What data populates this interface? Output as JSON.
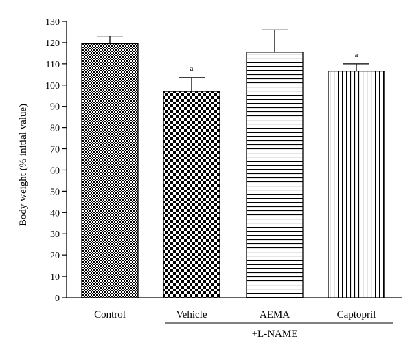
{
  "chart_data": {
    "type": "bar",
    "title": "",
    "xlabel": "",
    "ylabel": "Body weight (% initial value)",
    "ylim": [
      0,
      130
    ],
    "yticks": [
      0,
      10,
      20,
      30,
      40,
      50,
      60,
      70,
      80,
      90,
      100,
      110,
      120,
      130
    ],
    "categories": [
      "Control",
      "Vehicle",
      "AEMA",
      "Captopril"
    ],
    "values": [
      119.5,
      97,
      115.5,
      106.5
    ],
    "error_upper": [
      123,
      103.5,
      126,
      110
    ],
    "significance": [
      "",
      "a",
      "",
      "a"
    ],
    "patterns": [
      "checker-fine",
      "checker-coarse",
      "horizontal-lines",
      "vertical-lines"
    ],
    "group_label": "+L-NAME",
    "group_categories": [
      "Vehicle",
      "AEMA",
      "Captopril"
    ],
    "grid": false,
    "colors": {
      "bar_ink": "#000000",
      "background": "#ffffff"
    }
  }
}
